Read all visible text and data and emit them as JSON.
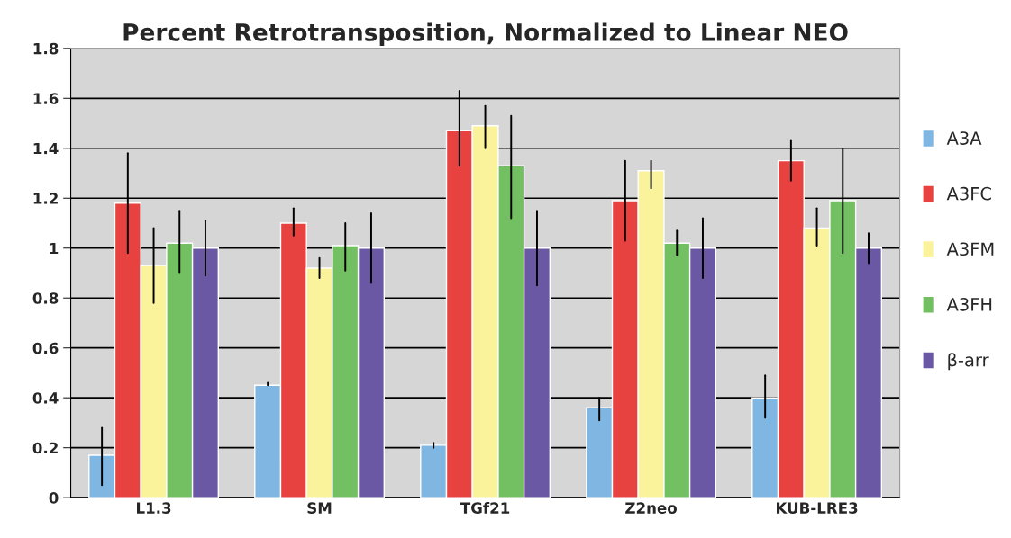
{
  "chart_data": {
    "type": "bar",
    "title": "Percent Retrotransposition, Normalized to Linear NEO",
    "categories": [
      "L1.3",
      "SM",
      "TGf21",
      "Z2neo",
      "KUB-LRE3"
    ],
    "series": [
      {
        "name": "A3A",
        "color": "#7fb6e2",
        "values": [
          0.17,
          0.45,
          0.21,
          0.36,
          0.4
        ],
        "errors": [
          [
            0.05,
            0.28
          ],
          [
            0.45,
            0.46
          ],
          [
            0.2,
            0.22
          ],
          [
            0.31,
            0.4
          ],
          [
            0.32,
            0.49
          ]
        ]
      },
      {
        "name": "A3FC",
        "color": "#e74240",
        "values": [
          1.18,
          1.1,
          1.47,
          1.19,
          1.35
        ],
        "errors": [
          [
            0.98,
            1.38
          ],
          [
            1.05,
            1.16
          ],
          [
            1.33,
            1.63
          ],
          [
            1.03,
            1.35
          ],
          [
            1.27,
            1.43
          ]
        ]
      },
      {
        "name": "A3FM",
        "color": "#faf39c",
        "values": [
          0.93,
          0.92,
          1.49,
          1.31,
          1.08
        ],
        "errors": [
          [
            0.78,
            1.08
          ],
          [
            0.88,
            0.96
          ],
          [
            1.4,
            1.57
          ],
          [
            1.24,
            1.35
          ],
          [
            1.01,
            1.16
          ]
        ]
      },
      {
        "name": "A3FH",
        "color": "#72c062",
        "values": [
          1.02,
          1.01,
          1.33,
          1.02,
          1.19
        ],
        "errors": [
          [
            0.9,
            1.15
          ],
          [
            0.91,
            1.1
          ],
          [
            1.12,
            1.53
          ],
          [
            0.97,
            1.07
          ],
          [
            0.98,
            1.4
          ]
        ]
      },
      {
        "name": "β-arr",
        "color": "#6a58a4",
        "values": [
          1.0,
          1.0,
          1.0,
          1.0,
          1.0
        ],
        "errors": [
          [
            0.89,
            1.11
          ],
          [
            0.86,
            1.14
          ],
          [
            0.85,
            1.15
          ],
          [
            0.88,
            1.12
          ],
          [
            0.94,
            1.06
          ]
        ]
      }
    ],
    "ylim": [
      0,
      1.8
    ],
    "yticks": [
      0,
      {
        "value": 0.2,
        "label": "0.2"
      },
      {
        "value": 0.4,
        "label": "0.4"
      },
      {
        "value": 0.6,
        "label": "0.6"
      },
      {
        "value": 0.8,
        "label": "0.8"
      },
      1,
      {
        "value": 1.2,
        "label": "1.2"
      },
      {
        "value": 1.4,
        "label": "1.4"
      },
      {
        "value": 1.6,
        "label": "1.6"
      },
      {
        "value": 1.8,
        "label": "1.8"
      }
    ],
    "grid": "y",
    "legend": "right"
  }
}
